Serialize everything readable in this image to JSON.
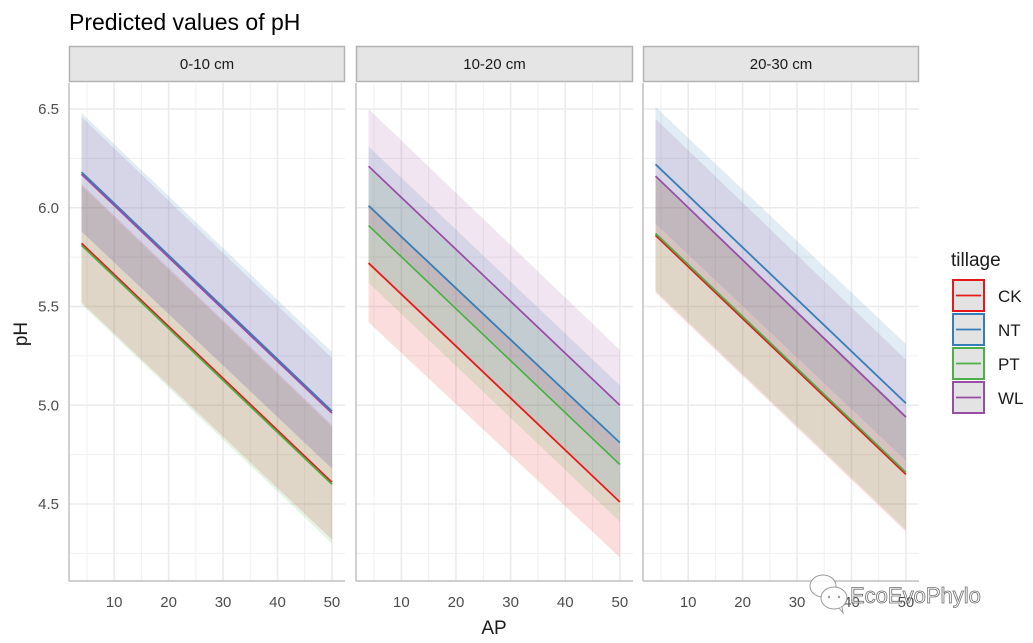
{
  "chart_data": {
    "type": "line",
    "title": "Predicted values of pH",
    "xlabel": "AP",
    "ylabel": "pH",
    "xlim": [
      1.7,
      52.4
    ],
    "ylim": [
      4.11,
      6.63
    ],
    "x_ticks": [
      10,
      20,
      30,
      40,
      50
    ],
    "x_tick_labels": [
      "10",
      "20",
      "30",
      "40",
      "50"
    ],
    "y_ticks": [
      4.5,
      5.0,
      5.5,
      6.0,
      6.5
    ],
    "y_tick_labels": [
      "4.5",
      "5.0",
      "5.5",
      "6.0",
      "6.5"
    ],
    "grid": true,
    "legend": {
      "title": "tillage",
      "placement": "right",
      "entries": [
        "CK",
        "NT",
        "PT",
        "WL"
      ]
    },
    "colors": {
      "CK": "#E41A1C",
      "NT": "#377EB8",
      "PT": "#4DAF4A",
      "WL": "#984EA3"
    },
    "x_range_data": [
      4,
      50
    ],
    "panels": [
      {
        "label": "0-10 cm",
        "series": [
          {
            "name": "CK",
            "start": 5.82,
            "end": 4.61,
            "ci_start": [
              5.52,
              6.12
            ],
            "ci_end": [
              4.32,
              4.9
            ]
          },
          {
            "name": "NT",
            "start": 6.18,
            "end": 4.97,
            "ci_start": [
              5.88,
              6.48
            ],
            "ci_end": [
              4.68,
              5.27
            ]
          },
          {
            "name": "PT",
            "start": 5.81,
            "end": 4.6,
            "ci_start": [
              5.51,
              6.11
            ],
            "ci_end": [
              4.3,
              4.89
            ]
          },
          {
            "name": "WL",
            "start": 6.17,
            "end": 4.96,
            "ci_start": [
              5.88,
              6.46
            ],
            "ci_end": [
              4.68,
              5.24
            ]
          }
        ]
      },
      {
        "label": "10-20 cm",
        "series": [
          {
            "name": "CK",
            "start": 5.72,
            "end": 4.51,
            "ci_start": [
              5.42,
              6.02
            ],
            "ci_end": [
              4.23,
              4.8
            ]
          },
          {
            "name": "NT",
            "start": 6.01,
            "end": 4.81,
            "ci_start": [
              5.72,
              6.31
            ],
            "ci_end": [
              4.52,
              5.1
            ]
          },
          {
            "name": "PT",
            "start": 5.91,
            "end": 4.7,
            "ci_start": [
              5.62,
              6.2
            ],
            "ci_end": [
              4.41,
              4.99
            ]
          },
          {
            "name": "WL",
            "start": 6.21,
            "end": 5.0,
            "ci_start": [
              5.92,
              6.5
            ],
            "ci_end": [
              4.71,
              5.28
            ]
          }
        ]
      },
      {
        "label": "20-30 cm",
        "series": [
          {
            "name": "CK",
            "start": 5.86,
            "end": 4.65,
            "ci_start": [
              5.57,
              6.15
            ],
            "ci_end": [
              4.36,
              4.94
            ]
          },
          {
            "name": "NT",
            "start": 6.22,
            "end": 5.01,
            "ci_start": [
              5.92,
              6.51
            ],
            "ci_end": [
              4.72,
              5.31
            ]
          },
          {
            "name": "PT",
            "start": 5.87,
            "end": 4.66,
            "ci_start": [
              5.58,
              6.16
            ],
            "ci_end": [
              4.37,
              4.95
            ]
          },
          {
            "name": "WL",
            "start": 6.16,
            "end": 4.94,
            "ci_start": [
              5.87,
              6.45
            ],
            "ci_end": [
              4.65,
              5.23
            ]
          }
        ]
      }
    ]
  },
  "watermark": "EcoEvoPhylo"
}
